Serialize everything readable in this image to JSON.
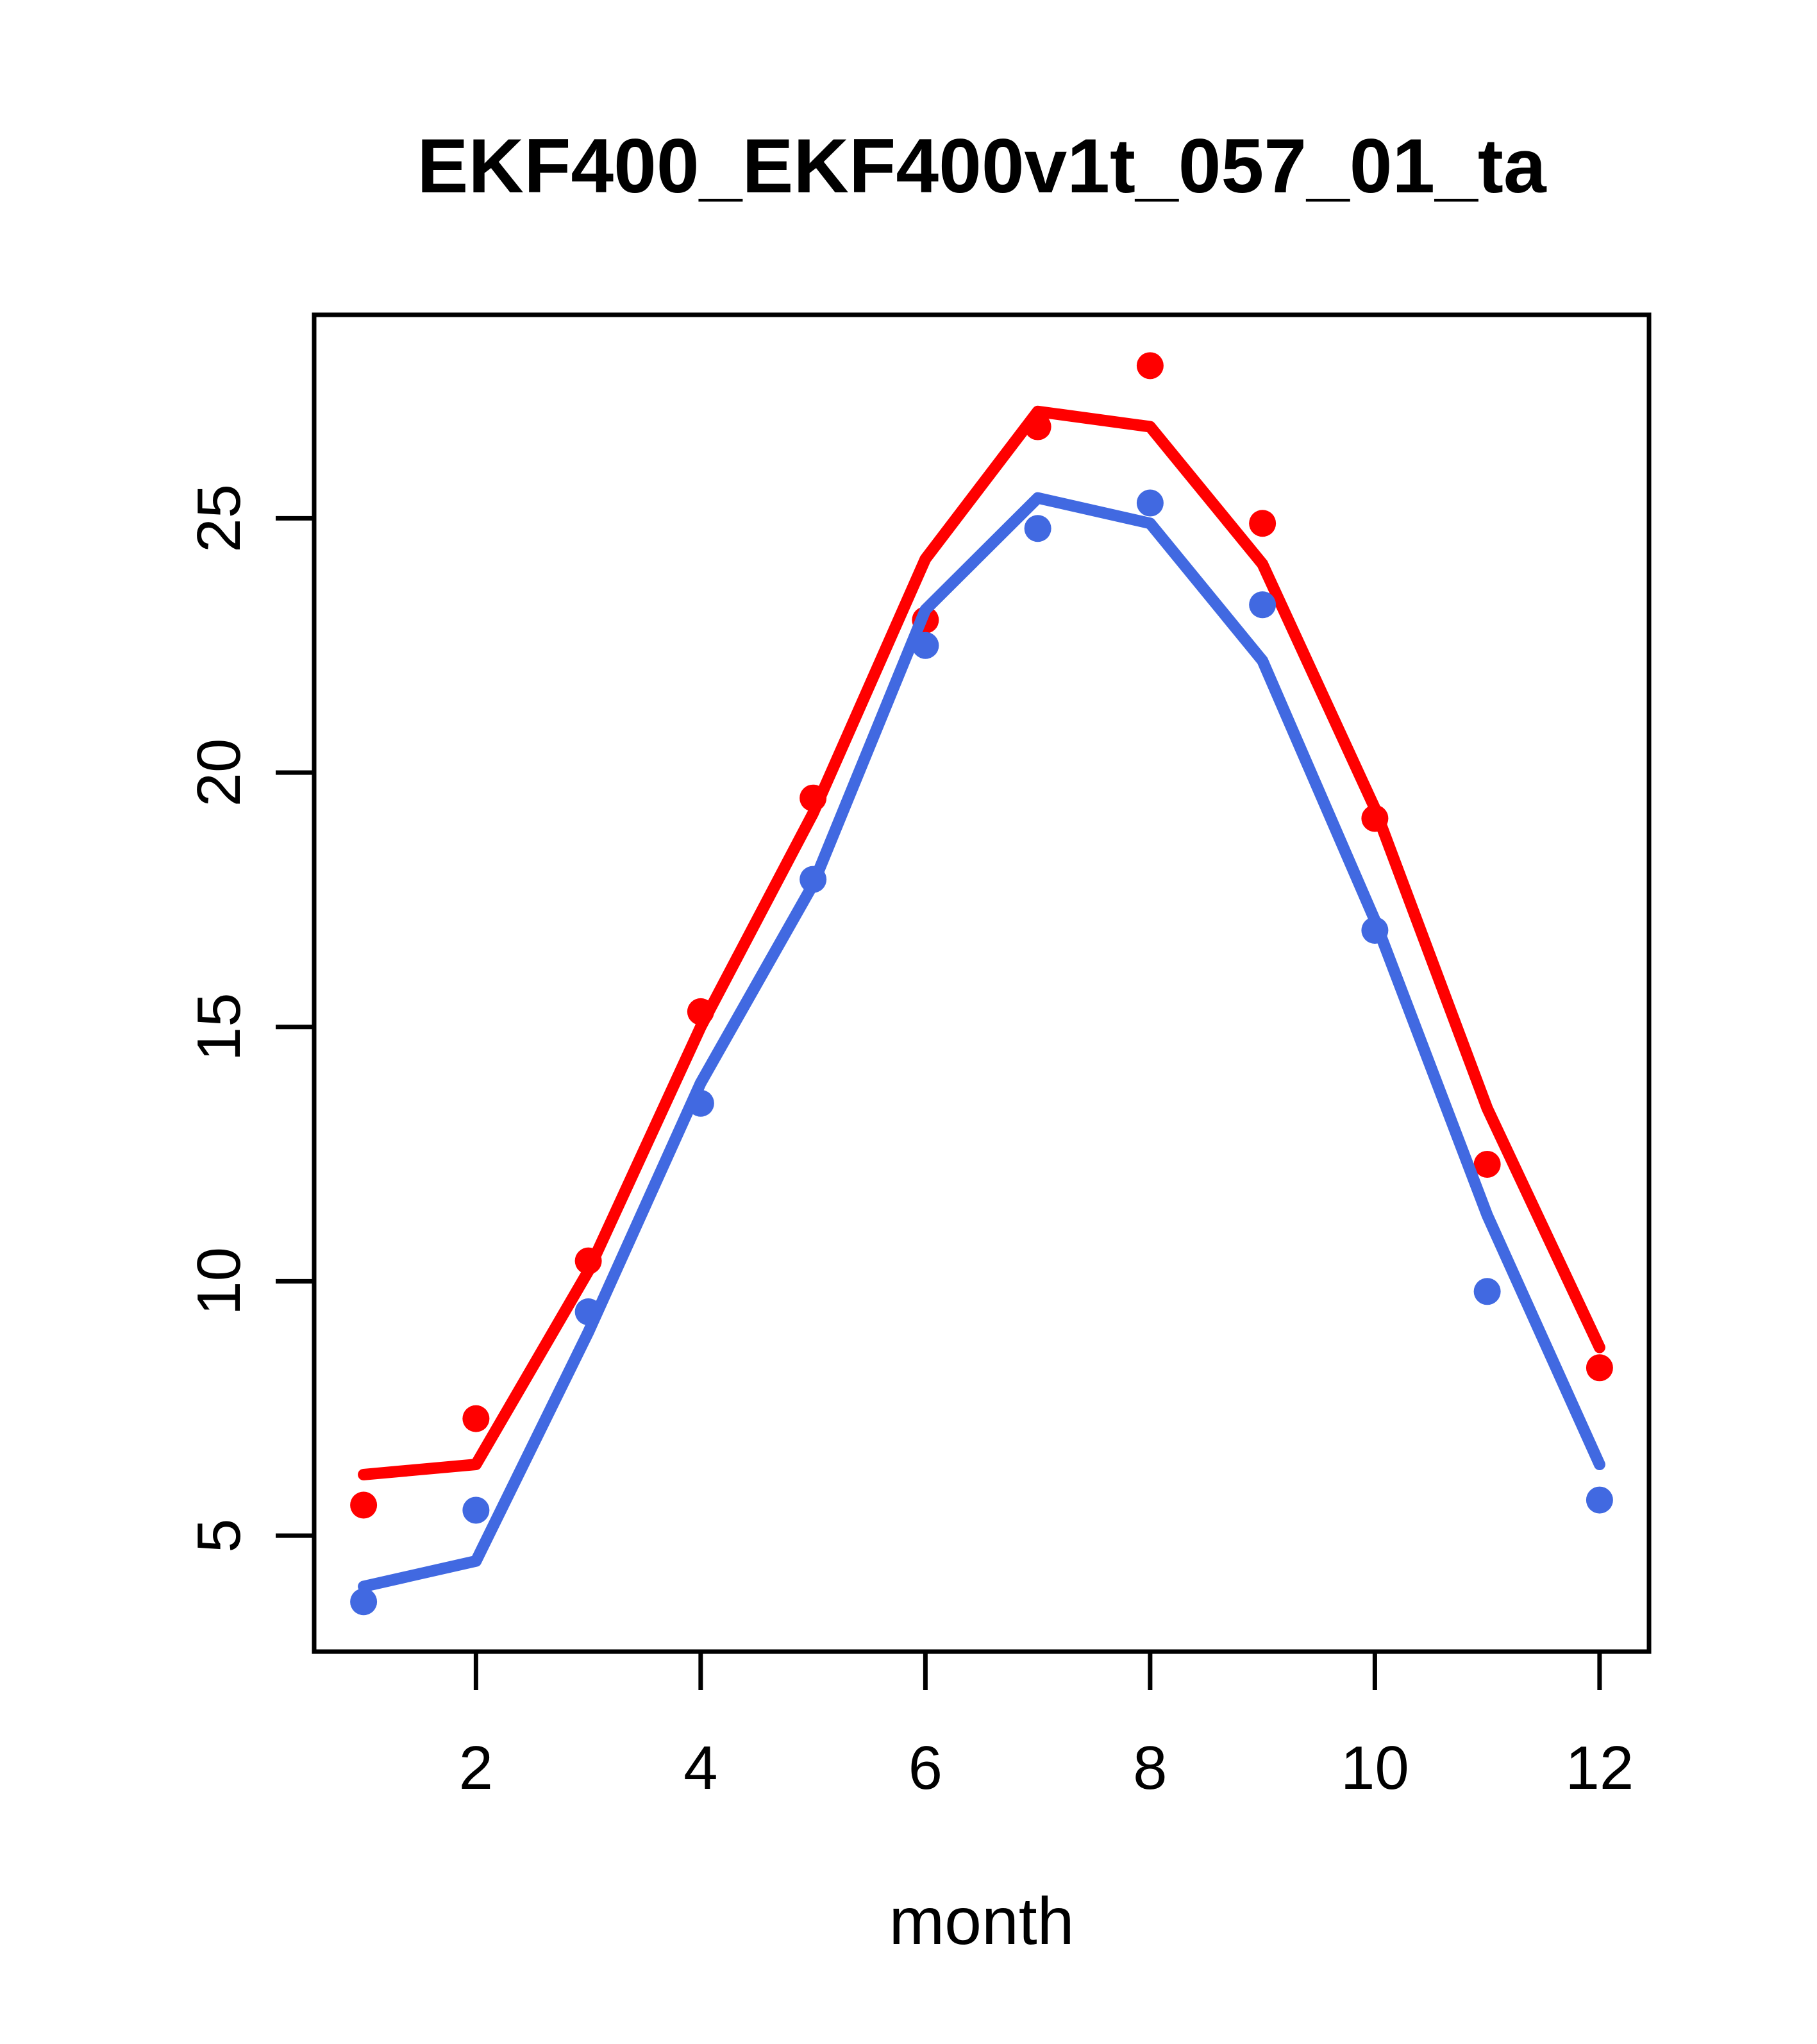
{
  "title": "EKF400_EKF400v1t_057_01_ta",
  "x_axis_label": "month",
  "colors": {
    "red_series": "#ff0000",
    "blue_series": "#4169e1",
    "axis": "#000000",
    "background": "#ffffff"
  },
  "chart_data": {
    "type": "line",
    "title": "EKF400_EKF400v1t_057_01_ta",
    "xlabel": "month",
    "ylabel": "",
    "x": [
      1,
      2,
      3,
      4,
      5,
      6,
      7,
      8,
      9,
      10,
      11,
      12
    ],
    "xticks": [
      2,
      4,
      6,
      8,
      10,
      12
    ],
    "yticks": [
      5,
      10,
      15,
      20,
      25
    ],
    "xlim": [
      0.56,
      12.44
    ],
    "ylim": [
      2.72,
      29.0
    ],
    "grid": false,
    "legend_position": "none",
    "series": [
      {
        "name": "red-line",
        "draw": "line",
        "color": "#ff0000",
        "values": [
          6.2,
          6.4,
          10.2,
          15.0,
          19.2,
          24.2,
          27.1,
          26.8,
          24.1,
          19.3,
          13.4,
          8.7
        ]
      },
      {
        "name": "red-points",
        "draw": "points",
        "color": "#ff0000",
        "values": [
          5.6,
          7.3,
          10.4,
          15.3,
          19.5,
          23.0,
          26.8,
          28.0,
          24.9,
          19.1,
          12.3,
          8.3
        ]
      },
      {
        "name": "blue-line",
        "draw": "line",
        "color": "#4169e1",
        "values": [
          4.0,
          4.5,
          9.0,
          13.9,
          17.8,
          23.2,
          25.4,
          24.9,
          22.2,
          17.1,
          11.3,
          6.4
        ]
      },
      {
        "name": "blue-points",
        "draw": "points",
        "color": "#4169e1",
        "values": [
          3.7,
          5.5,
          9.4,
          13.5,
          17.9,
          22.5,
          24.8,
          25.3,
          23.3,
          16.9,
          9.8,
          5.7
        ]
      }
    ]
  }
}
